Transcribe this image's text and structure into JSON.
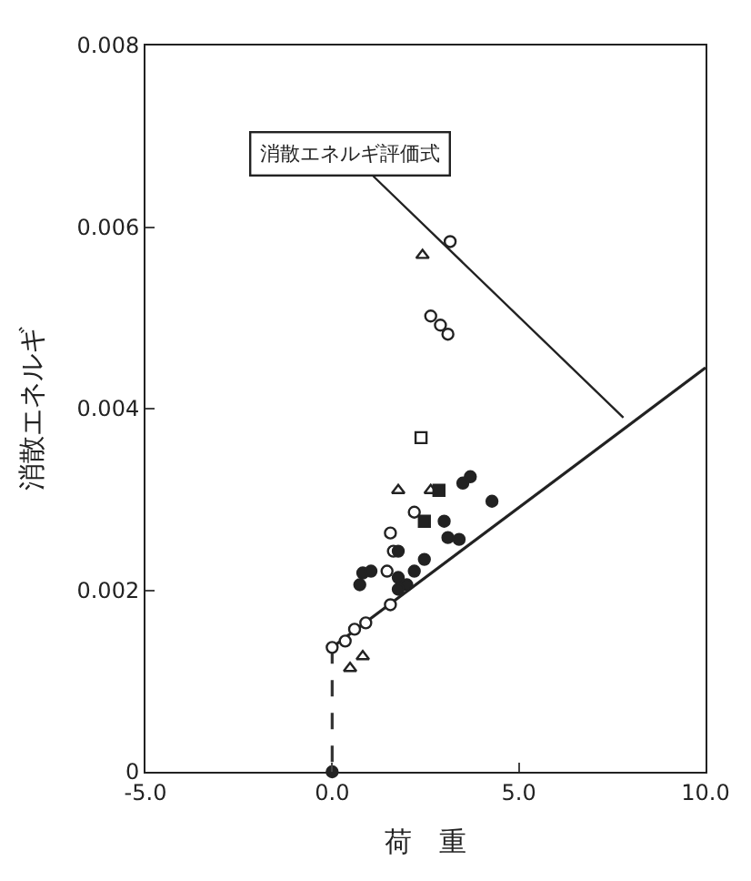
{
  "chart_data": {
    "type": "scatter",
    "xlabel": "荷　重",
    "ylabel": "消散エネルギ",
    "xlim": [
      -5,
      10
    ],
    "xticks": [
      {
        "value": -5,
        "label": "-5.0"
      },
      {
        "value": 0,
        "label": "0.0"
      },
      {
        "value": 5,
        "label": "5.0"
      },
      {
        "value": 10,
        "label": "10.0"
      }
    ],
    "ylim": [
      0,
      0.008
    ],
    "yticks": [
      0,
      0.002,
      0.004,
      0.006,
      0.008
    ],
    "grid": false,
    "annotations": [
      {
        "text": "消散エネルギ評価式",
        "x": 7.8,
        "y": 0.0039
      }
    ],
    "series": [
      {
        "type": "line",
        "color": "#222222",
        "line_style": "solid",
        "marker": "none",
        "x": [
          0,
          10
        ],
        "values": [
          0.00137,
          0.00445
        ]
      },
      {
        "type": "line",
        "color": "#333333",
        "line_style": "dashed",
        "marker": "none",
        "x": [
          0,
          0
        ],
        "values": [
          0.00137,
          0
        ]
      },
      {
        "color": "#ffffff",
        "marker": "circle",
        "x": [
          0,
          3.16,
          3.1,
          2.9,
          2.64,
          2.2,
          1.56,
          1.64,
          1.47,
          1.56,
          0.9,
          0.6,
          0.35
        ],
        "values": [
          0.00137,
          0.00584,
          0.00482,
          0.00492,
          0.00502,
          0.00286,
          0.00263,
          0.00243,
          0.00221,
          0.00184,
          0.00164,
          0.00157,
          0.00144
        ]
      },
      {
        "color": "#ffffff",
        "marker": "triangle",
        "x": [
          2.42,
          2.64,
          1.77,
          0.82,
          0.48
        ],
        "values": [
          0.00569,
          0.0031,
          0.0031,
          0.00127,
          0.00114
        ]
      },
      {
        "color": "#ffffff",
        "marker": "square",
        "x": [
          2.38
        ],
        "values": [
          0.00368
        ]
      },
      {
        "color": "#222222",
        "marker": "circle",
        "x": [
          0,
          4.28,
          3.7,
          3.5,
          3.0,
          3.4,
          3.1,
          2.47,
          2.2,
          2.0,
          1.77,
          1.77,
          1.77,
          0.82,
          0.74,
          1.04
        ],
        "values": [
          0,
          0.00298,
          0.00325,
          0.00318,
          0.00276,
          0.00256,
          0.00258,
          0.00234,
          0.00221,
          0.00206,
          0.00214,
          0.00201,
          0.00243,
          0.00219,
          0.00206,
          0.00221
        ]
      },
      {
        "color": "#222222",
        "marker": "square",
        "x": [
          2.86,
          2.47
        ],
        "values": [
          0.0031,
          0.00276
        ]
      }
    ]
  }
}
